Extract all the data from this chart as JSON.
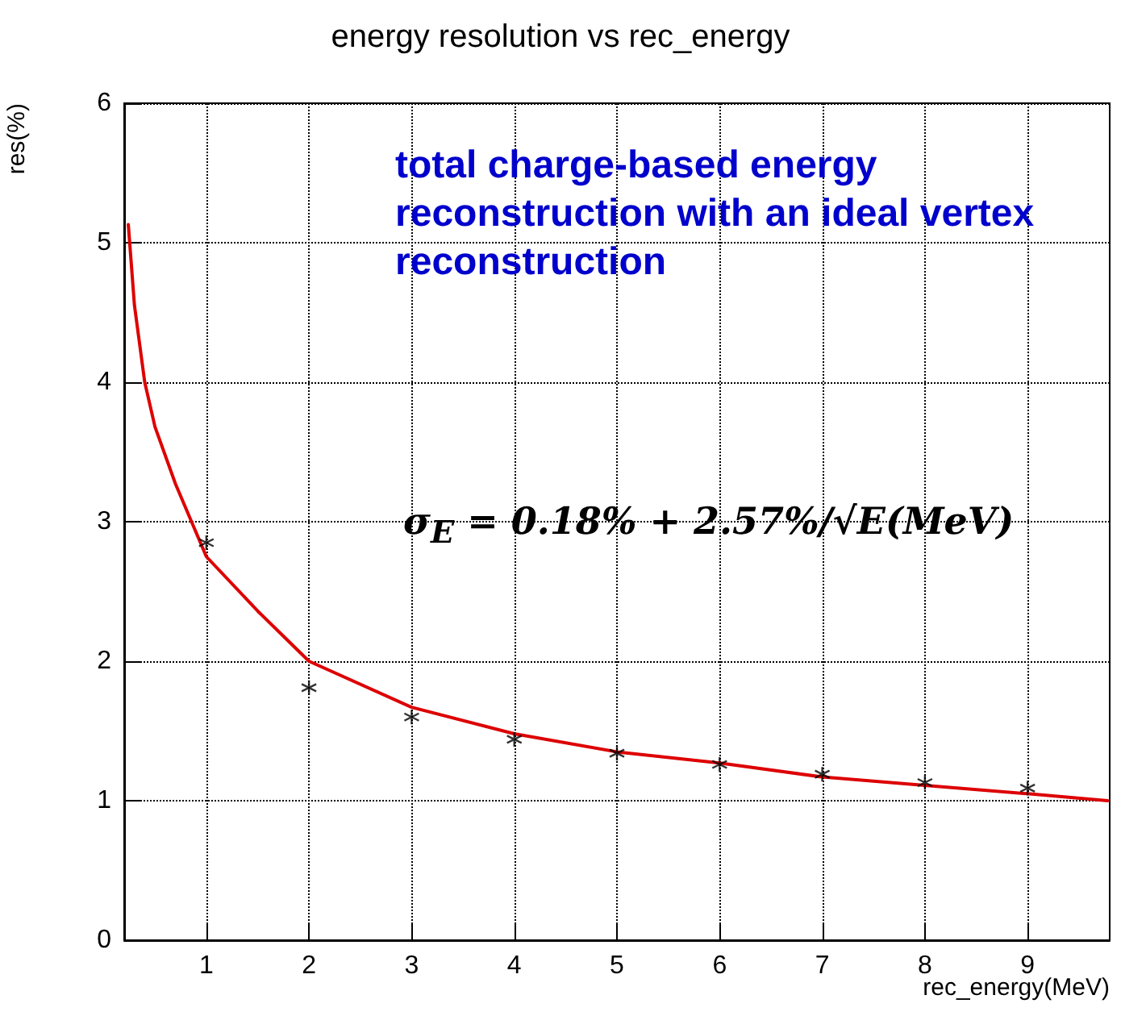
{
  "chart_data": {
    "type": "scatter",
    "title": "energy resolution vs rec_energy",
    "xlabel": "rec_energy(MeV)",
    "ylabel": "res(%)",
    "annotations": [
      "total charge-based energy reconstruction with an ideal vertex reconstruction",
      "σ$_{E}$ = 0.18% + 2.57%/√E(MeV)"
    ],
    "series": [
      {
        "color": "#000000",
        "marker": "cross",
        "x": [
          1,
          2,
          3,
          4,
          5,
          6,
          7,
          8,
          9
        ],
        "values": [
          2.85,
          1.81,
          1.6,
          1.44,
          1.34,
          1.26,
          1.19,
          1.13,
          1.09
        ]
      },
      {
        "type": "line",
        "color": "#dd0000",
        "marker": "none",
        "x": [
          0.24,
          0.3,
          0.4,
          0.5,
          0.7,
          1,
          1.5,
          2,
          3,
          4,
          5,
          6,
          7,
          8,
          9,
          9.78
        ],
        "values": [
          5.13,
          4.55,
          4.0,
          3.68,
          3.27,
          2.75,
          2.36,
          2.0,
          1.67,
          1.48,
          1.35,
          1.27,
          1.17,
          1.11,
          1.05,
          1.0
        ]
      }
    ],
    "xlim": [
      0.2,
      9.8
    ],
    "xticks": [
      1,
      2,
      3,
      4,
      5,
      6,
      7,
      8,
      9
    ],
    "ylim": [
      0,
      6
    ],
    "yticks": [
      0,
      1,
      2,
      3,
      4,
      5,
      6
    ],
    "grid": true
  }
}
